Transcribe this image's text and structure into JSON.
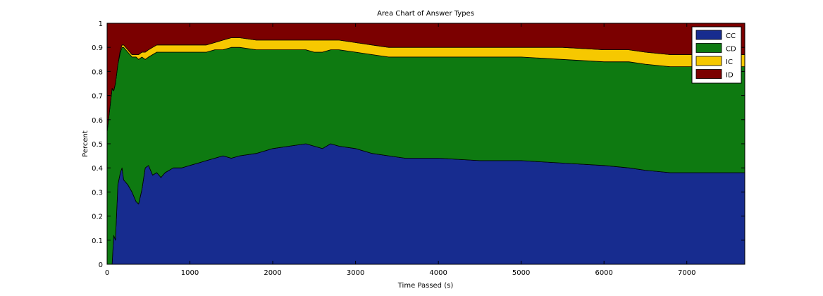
{
  "chart_data": {
    "type": "area",
    "stacked": true,
    "title": "Area Chart of Answer Types",
    "xlabel": "Time Passed (s)",
    "ylabel": "Percent",
    "xlim": [
      0,
      7700
    ],
    "ylim": [
      0,
      1
    ],
    "xticks": [
      0,
      1000,
      2000,
      3000,
      4000,
      5000,
      6000,
      7000
    ],
    "yticks": [
      0,
      0.1,
      0.2,
      0.3,
      0.4,
      0.5,
      0.6,
      0.7,
      0.8,
      0.9,
      1
    ],
    "ytick_labels": [
      "0",
      "0.1",
      "0.2",
      "0.3",
      "0.4",
      "0.5",
      "0.6",
      "0.7",
      "0.8",
      "0.9",
      "1"
    ],
    "grid": false,
    "legend_position": "top-right",
    "x": [
      0,
      60,
      80,
      100,
      130,
      160,
      180,
      200,
      250,
      300,
      350,
      380,
      420,
      460,
      500,
      550,
      600,
      650,
      700,
      800,
      900,
      1000,
      1100,
      1200,
      1300,
      1400,
      1500,
      1600,
      1800,
      2000,
      2200,
      2400,
      2500,
      2600,
      2700,
      2800,
      3000,
      3200,
      3400,
      3600,
      3800,
      4000,
      4500,
      5000,
      5500,
      6000,
      6300,
      6500,
      6800,
      7000,
      7300,
      7700
    ],
    "series": [
      {
        "name": "CC",
        "color": "#172c8f",
        "values": [
          0,
          0,
          0.12,
          0.1,
          0.33,
          0.38,
          0.4,
          0.35,
          0.33,
          0.3,
          0.26,
          0.25,
          0.31,
          0.4,
          0.41,
          0.37,
          0.38,
          0.36,
          0.38,
          0.4,
          0.4,
          0.41,
          0.42,
          0.43,
          0.44,
          0.45,
          0.44,
          0.45,
          0.46,
          0.48,
          0.49,
          0.5,
          0.49,
          0.48,
          0.5,
          0.49,
          0.48,
          0.46,
          0.45,
          0.44,
          0.44,
          0.44,
          0.43,
          0.43,
          0.42,
          0.41,
          0.4,
          0.39,
          0.38,
          0.38,
          0.38,
          0.38
        ]
      },
      {
        "name": "CD",
        "color": "#0e7a11",
        "values": [
          0.55,
          0.73,
          0.6,
          0.65,
          0.5,
          0.5,
          0.5,
          0.55,
          0.55,
          0.56,
          0.6,
          0.6,
          0.55,
          0.45,
          0.45,
          0.5,
          0.5,
          0.52,
          0.5,
          0.48,
          0.48,
          0.47,
          0.46,
          0.45,
          0.45,
          0.44,
          0.46,
          0.45,
          0.43,
          0.41,
          0.4,
          0.39,
          0.39,
          0.4,
          0.39,
          0.4,
          0.4,
          0.41,
          0.41,
          0.42,
          0.42,
          0.42,
          0.43,
          0.43,
          0.43,
          0.43,
          0.44,
          0.44,
          0.44,
          0.44,
          0.44,
          0.44
        ]
      },
      {
        "name": "IC",
        "color": "#f6c800",
        "values": [
          0,
          0,
          0,
          0,
          0,
          0.01,
          0.01,
          0.01,
          0.01,
          0.01,
          0.01,
          0.02,
          0.02,
          0.03,
          0.03,
          0.03,
          0.03,
          0.03,
          0.03,
          0.03,
          0.03,
          0.03,
          0.03,
          0.03,
          0.03,
          0.04,
          0.04,
          0.04,
          0.04,
          0.04,
          0.04,
          0.04,
          0.05,
          0.05,
          0.04,
          0.04,
          0.04,
          0.04,
          0.04,
          0.04,
          0.04,
          0.04,
          0.04,
          0.04,
          0.05,
          0.05,
          0.05,
          0.05,
          0.05,
          0.05,
          0.05,
          0.05
        ]
      },
      {
        "name": "ID",
        "color": "#7b0000",
        "values": [
          0.45,
          0.27,
          0.28,
          0.25,
          0.17,
          0.11,
          0.09,
          0.09,
          0.11,
          0.13,
          0.13,
          0.13,
          0.12,
          0.12,
          0.11,
          0.1,
          0.09,
          0.09,
          0.09,
          0.09,
          0.09,
          0.09,
          0.09,
          0.09,
          0.08,
          0.07,
          0.06,
          0.06,
          0.07,
          0.07,
          0.07,
          0.07,
          0.07,
          0.07,
          0.07,
          0.07,
          0.08,
          0.09,
          0.1,
          0.1,
          0.1,
          0.1,
          0.1,
          0.1,
          0.1,
          0.11,
          0.11,
          0.12,
          0.13,
          0.13,
          0.13,
          0.13
        ]
      }
    ]
  }
}
